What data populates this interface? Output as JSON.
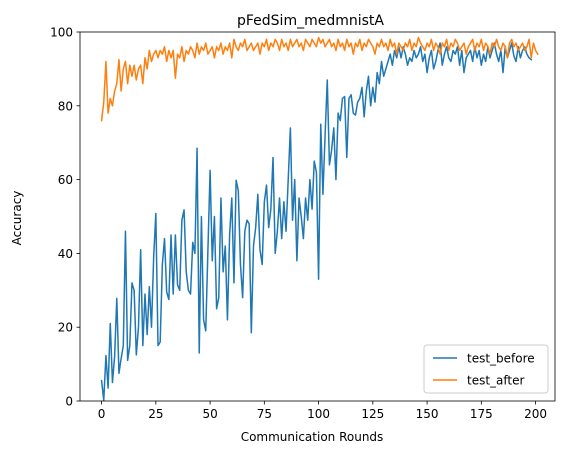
{
  "chart_data": {
    "type": "line",
    "title": "pFedSim_medmnistA",
    "xlabel": "Communication Rounds",
    "ylabel": "Accuracy",
    "xlim": [
      -9.95,
      208.95
    ],
    "ylim": [
      0,
      100
    ],
    "xticks": [
      0,
      25,
      50,
      75,
      100,
      125,
      150,
      175,
      200
    ],
    "yticks": [
      0,
      20,
      40,
      60,
      80,
      100
    ],
    "grid": false,
    "legend_position": "lower-right",
    "series": [
      {
        "name": "test_before",
        "color": "#1f77b4",
        "values": [
          5.5,
          0.2,
          12.3,
          3.5,
          21.0,
          5.0,
          12.0,
          27.8,
          7.5,
          11.5,
          15.0,
          46.0,
          11.0,
          15.0,
          32.0,
          30.0,
          12.5,
          20.0,
          41.0,
          15.0,
          29.0,
          18.0,
          31.0,
          20.0,
          39.0,
          50.8,
          15.0,
          16.0,
          37.0,
          44.0,
          29.5,
          27.5,
          45.0,
          29.0,
          45.0,
          31.5,
          30.0,
          49.0,
          51.8,
          35.0,
          30.0,
          29.0,
          43.0,
          40.0,
          68.5,
          13.0,
          50.0,
          22.0,
          19.0,
          41.0,
          62.5,
          38.0,
          50.0,
          25.0,
          28.0,
          55.0,
          35.0,
          42.0,
          22.0,
          45.0,
          55.0,
          32.0,
          59.8,
          57.0,
          37.0,
          28.0,
          46.0,
          49.0,
          48.0,
          18.5,
          42.0,
          47.0,
          56.0,
          41.0,
          37.0,
          54.0,
          58.5,
          47.0,
          52.0,
          66.0,
          40.0,
          46.0,
          55.0,
          44.0,
          54.0,
          46.0,
          60.0,
          74.0,
          49.0,
          60.0,
          38.0,
          55.0,
          50.0,
          44.0,
          55.0,
          49.0,
          60.0,
          52.0,
          65.0,
          62.0,
          33.0,
          75.0,
          56.0,
          72.0,
          87.0,
          64.0,
          68.0,
          74.0,
          60.0,
          78.0,
          76.0,
          82.0,
          82.5,
          66.0,
          82.0,
          83.0,
          78.0,
          77.5,
          81.0,
          82.0,
          85.0,
          77.0,
          84.0,
          88.0,
          80.0,
          85.0,
          81.0,
          89.0,
          86.0,
          92.0,
          88.0,
          90.0,
          92.0,
          94.0,
          91.0,
          95.0,
          93.0,
          96.0,
          93.0,
          96.0,
          94.0,
          91.0,
          93.0,
          92.0,
          95.0,
          93.0,
          94.0,
          96.0,
          92.0,
          94.0,
          89.0,
          93.0,
          95.0,
          90.0,
          92.0,
          95.0,
          97.0,
          91.0,
          94.0,
          96.0,
          93.0,
          92.0,
          95.0,
          94.0,
          96.0,
          91.0,
          95.0,
          89.0,
          93.0,
          94.0,
          95.0,
          92.0,
          96.0,
          93.0,
          95.0,
          91.0,
          94.0,
          92.0,
          96.0,
          93.0,
          95.0,
          97.0,
          94.0,
          92.0,
          95.0,
          89.0,
          96.0,
          93.0,
          95.0,
          97.0,
          93.5,
          92.0,
          96.0,
          93.0,
          95.0,
          96.0,
          94.0,
          93.0,
          92.5
        ]
      },
      {
        "name": "test_after",
        "color": "#ff7f0e",
        "values": [
          76.0,
          81.0,
          92.0,
          78.0,
          82.0,
          80.0,
          84.0,
          86.0,
          92.5,
          84.0,
          90.0,
          92.0,
          86.0,
          91.0,
          88.0,
          91.0,
          87.0,
          90.0,
          91.0,
          86.0,
          93.0,
          90.0,
          95.0,
          92.0,
          94.0,
          95.0,
          93.0,
          95.0,
          94.0,
          96.0,
          92.0,
          95.0,
          93.0,
          95.0,
          87.5,
          94.0,
          93.0,
          96.0,
          92.0,
          95.0,
          94.0,
          96.0,
          95.0,
          93.0,
          97.0,
          94.0,
          96.0,
          95.0,
          97.0,
          94.0,
          95.0,
          96.0,
          93.0,
          96.0,
          95.0,
          97.0,
          94.0,
          96.0,
          95.0,
          97.0,
          93.0,
          98.0,
          96.0,
          95.0,
          97.0,
          96.0,
          98.0,
          95.0,
          96.0,
          97.0,
          95.0,
          96.0,
          97.0,
          94.0,
          97.0,
          96.0,
          98.0,
          95.0,
          97.0,
          96.0,
          98.0,
          97.0,
          95.0,
          98.0,
          96.0,
          97.0,
          95.0,
          98.0,
          96.0,
          97.0,
          98.0,
          96.0,
          97.0,
          95.0,
          98.0,
          97.0,
          96.0,
          98.0,
          97.0,
          96.0,
          98.5,
          97.0,
          98.0,
          96.0,
          97.0,
          98.0,
          96.0,
          97.0,
          95.0,
          98.0,
          96.0,
          97.0,
          95.0,
          98.0,
          96.0,
          97.0,
          94.0,
          97.0,
          96.0,
          98.0,
          95.0,
          97.0,
          96.0,
          98.0,
          97.0,
          96.0,
          94.0,
          97.0,
          96.0,
          98.0,
          96.0,
          97.0,
          95.0,
          98.0,
          96.0,
          97.0,
          94.0,
          97.0,
          96.0,
          95.0,
          97.0,
          96.0,
          98.0,
          95.0,
          97.0,
          96.0,
          98.5,
          97.0,
          96.0,
          95.0,
          97.0,
          96.0,
          98.0,
          95.0,
          97.0,
          96.0,
          94.0,
          97.0,
          96.0,
          98.0,
          95.0,
          97.0,
          96.0,
          98.0,
          97.0,
          95.0,
          96.0,
          97.0,
          94.0,
          96.0,
          97.0,
          98.0,
          95.0,
          97.0,
          96.0,
          98.0,
          95.0,
          97.0,
          96.0,
          94.0,
          97.0,
          96.0,
          98.0,
          96.0,
          95.0,
          97.0,
          96.0,
          93.0,
          97.0,
          98.0,
          96.0,
          97.0,
          95.0,
          96.0,
          97.0,
          95.0,
          96.0,
          98.0,
          93.0,
          97.0,
          95.0,
          94.0
        ]
      }
    ]
  }
}
